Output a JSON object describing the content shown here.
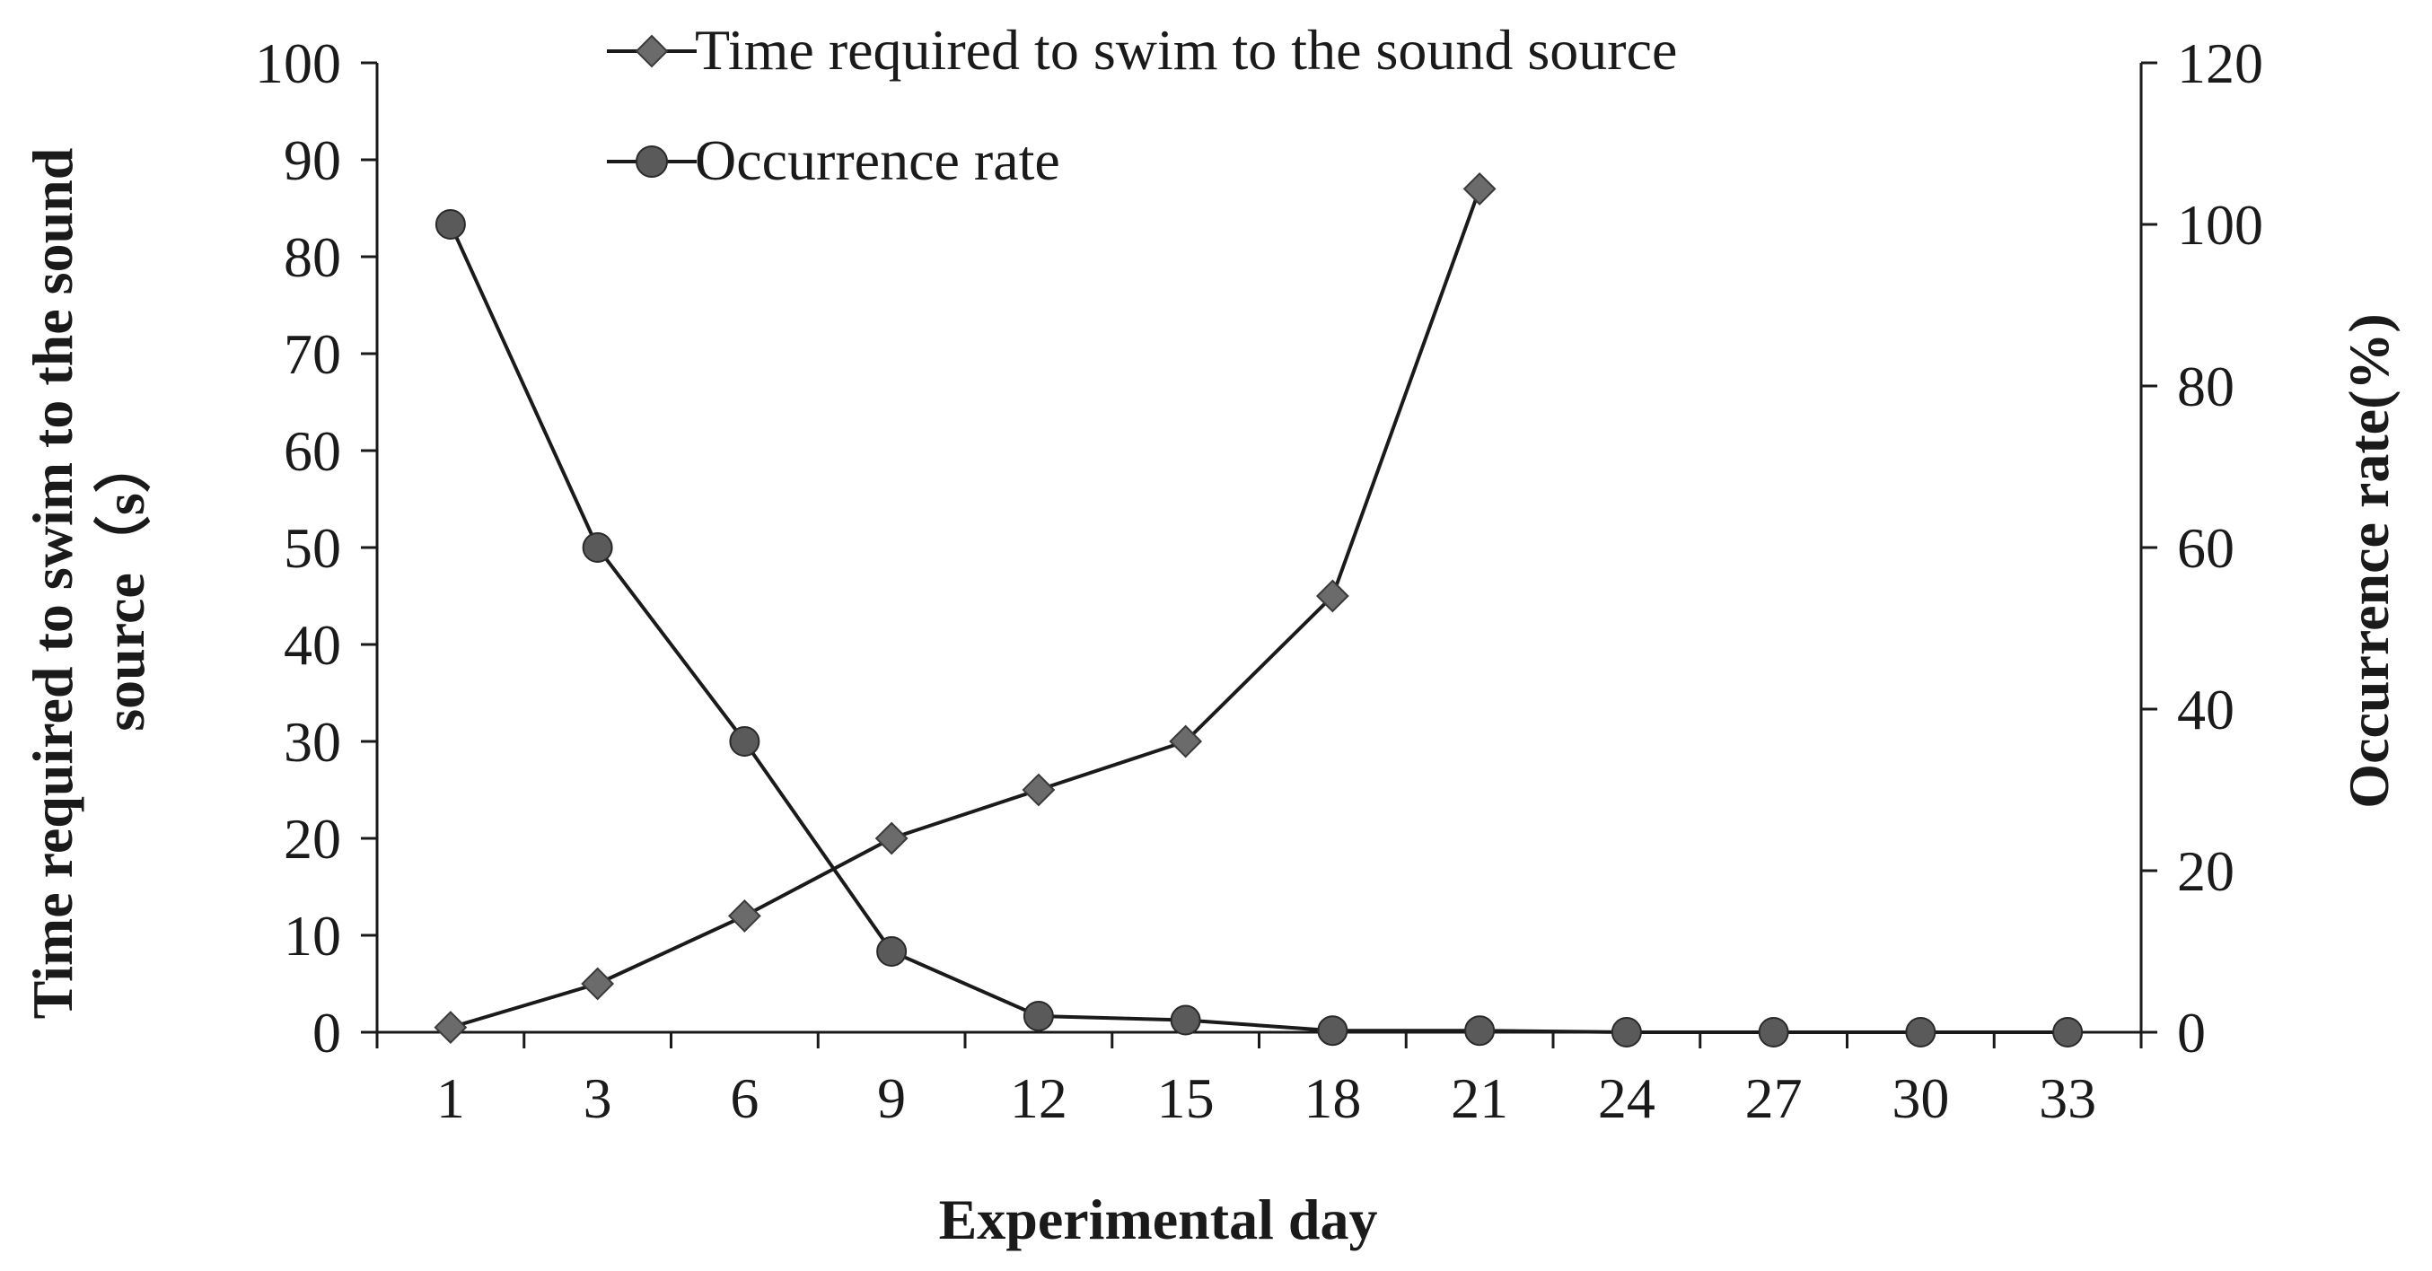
{
  "chart_data": {
    "type": "line",
    "title": "",
    "xlabel": "Experimental day",
    "ylabel_left_lines": [
      "Time required to swim to the sound",
      "source（s）"
    ],
    "ylabel_right": "Occurrence rate(%)",
    "categories": [
      "1",
      "3",
      "6",
      "9",
      "12",
      "15",
      "18",
      "21",
      "24",
      "27",
      "30",
      "33"
    ],
    "ylim_left": [
      0,
      100
    ],
    "yticks_left": [
      0,
      10,
      20,
      30,
      40,
      50,
      60,
      70,
      80,
      90,
      100
    ],
    "ylim_right": [
      0,
      120
    ],
    "yticks_right": [
      0,
      20,
      40,
      60,
      80,
      100,
      120
    ],
    "grid": false,
    "legend_position": "top",
    "series": [
      {
        "name": "Time required to swim to the sound source",
        "axis": "left",
        "marker": "diamond",
        "color": "#6b6b6b",
        "values": [
          0.5,
          5,
          12,
          20,
          25,
          30,
          45,
          87,
          null,
          null,
          null,
          null
        ]
      },
      {
        "name": "Occurrence rate",
        "axis": "right",
        "marker": "circle",
        "color": "#5a5a5a",
        "values": [
          100,
          60,
          36,
          10,
          2,
          1.5,
          0.2,
          0.2,
          0,
          0,
          0,
          0
        ]
      }
    ]
  }
}
